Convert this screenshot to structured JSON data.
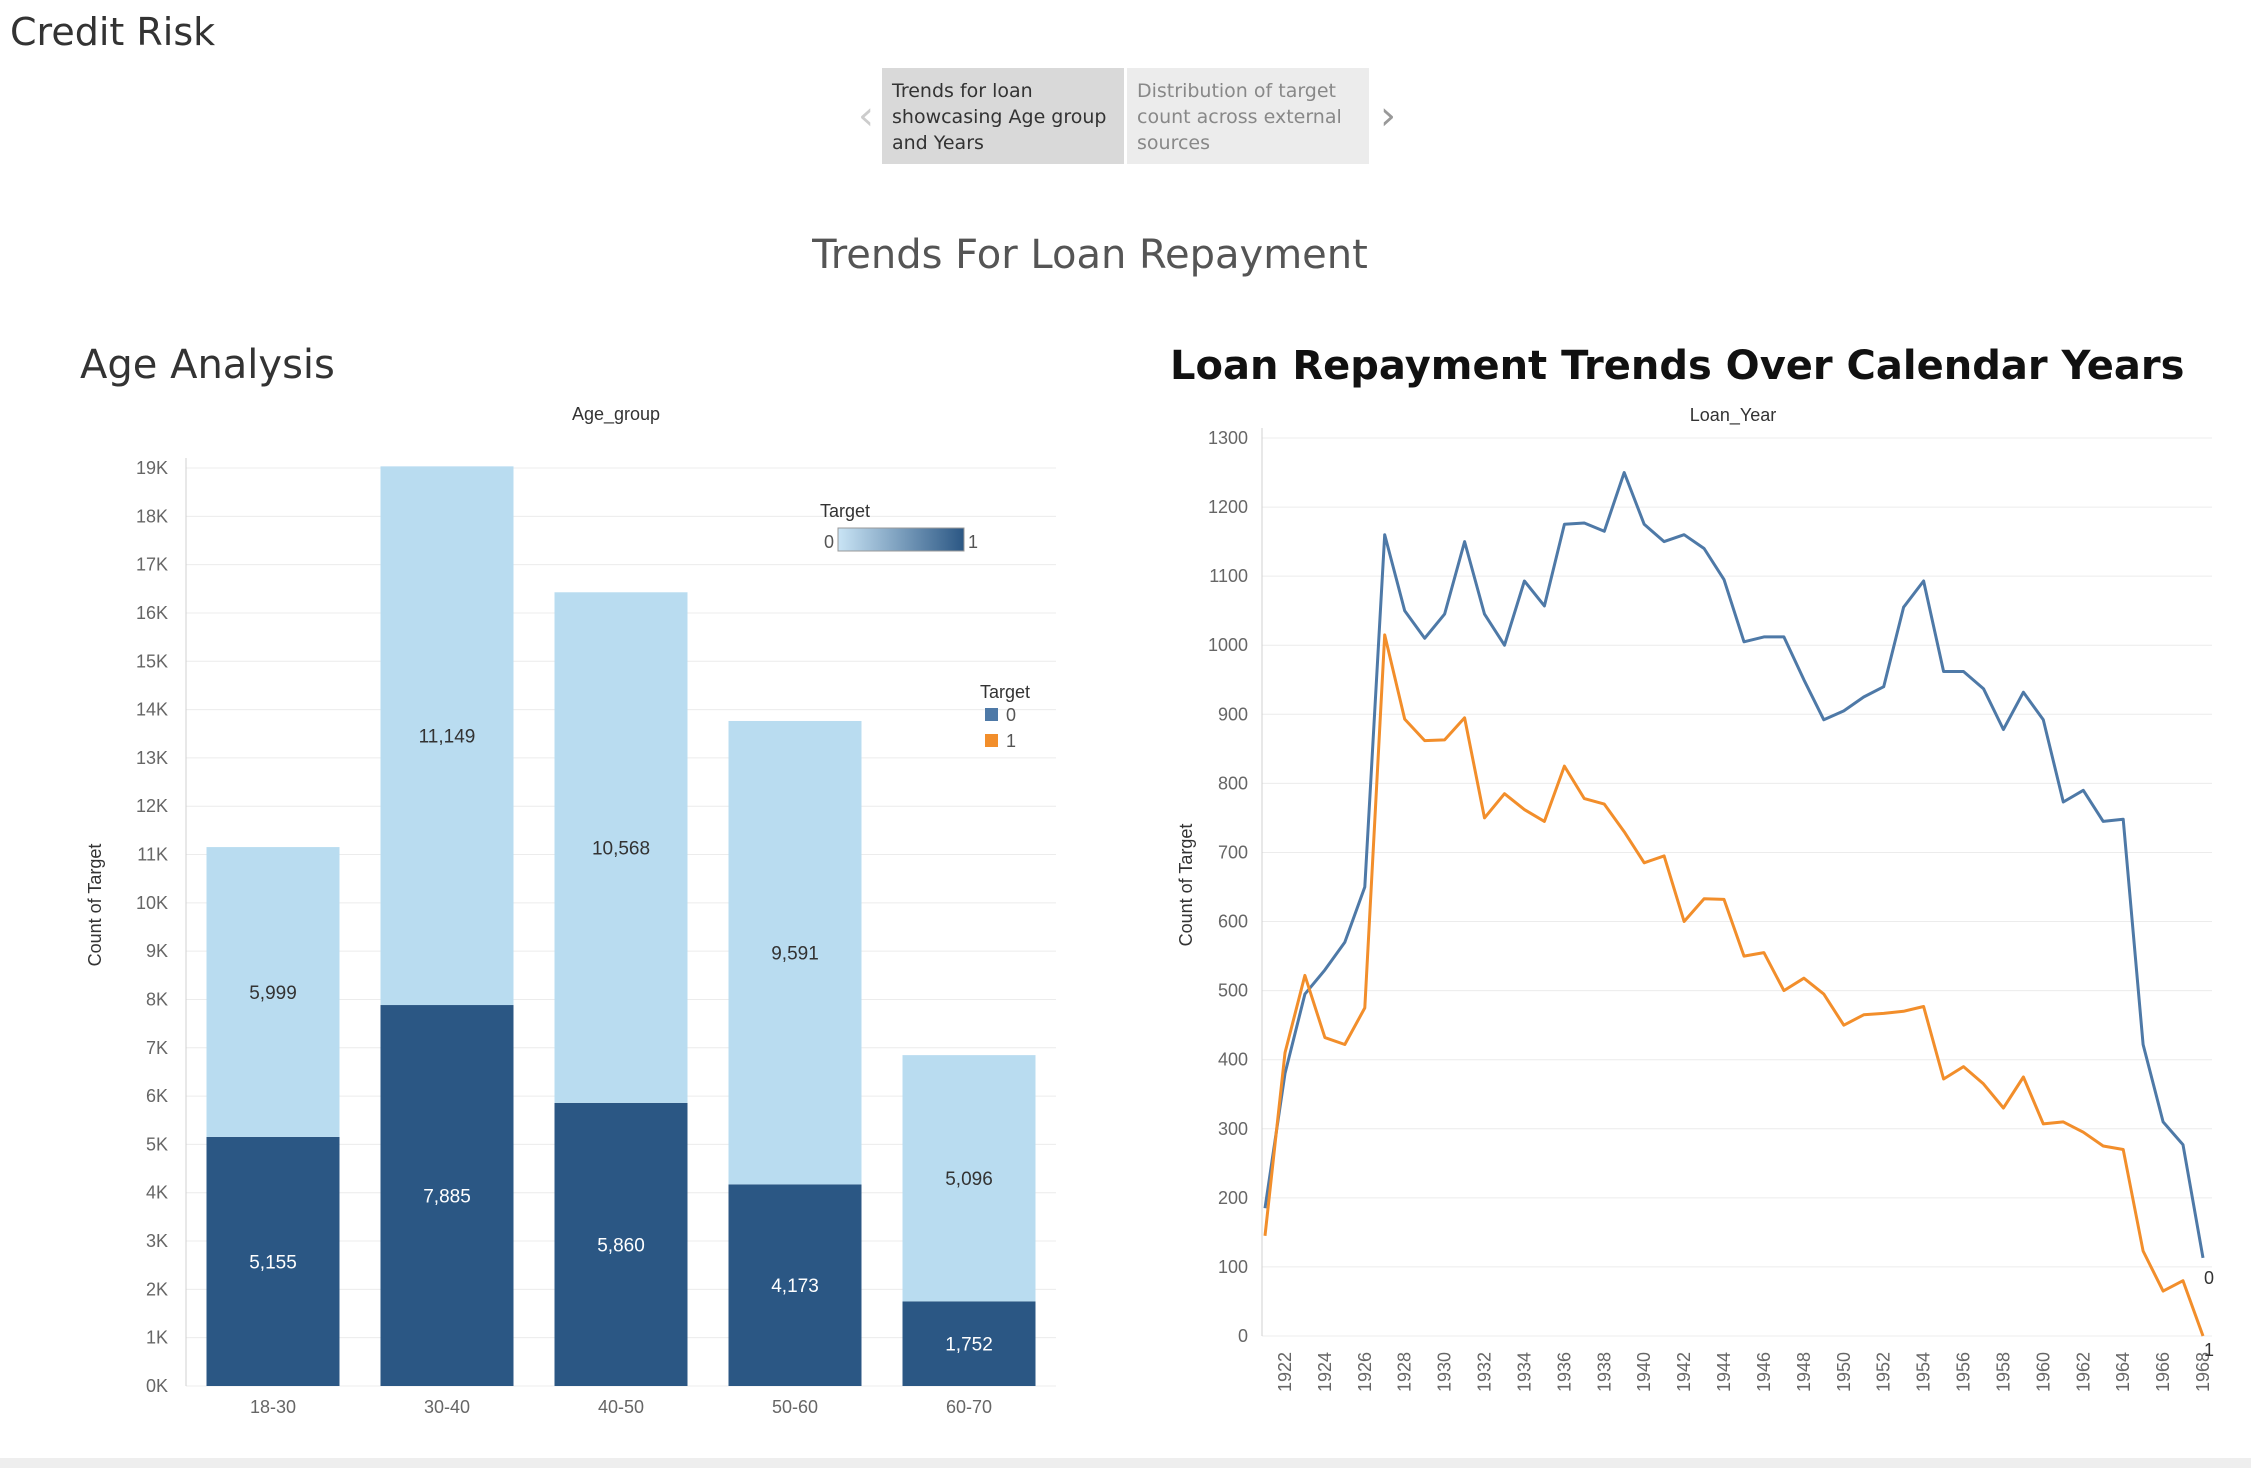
{
  "app": {
    "title": "Credit Risk"
  },
  "story": {
    "points": [
      {
        "label": "Trends for loan showcasing Age group and Years",
        "active": true
      },
      {
        "label": "Distribution of target count across external sources",
        "active": false
      }
    ],
    "prev_icon": "chevron-left-icon",
    "next_icon": "chevron-right-icon"
  },
  "dashboard": {
    "title": "Trends For Loan Repayment"
  },
  "charts": {
    "age": {
      "title": "Age Analysis"
    },
    "loan": {
      "title": "Loan Repayment Trends Over Calendar Years"
    }
  },
  "chart_data": [
    {
      "type": "bar",
      "stacked": true,
      "title": "Age Analysis",
      "xlabel": "Age_group",
      "ylabel": "Count of Target",
      "categories": [
        "18-30",
        "30-40",
        "40-50",
        "50-60",
        "60-70"
      ],
      "series": [
        {
          "name": "1",
          "values": [
            5155,
            7885,
            5860,
            4173,
            1752
          ]
        },
        {
          "name": "0",
          "values": [
            5999,
            11149,
            10568,
            9591,
            5096
          ]
        }
      ],
      "ylim": [
        0,
        19000
      ],
      "yticks": [
        "0K",
        "1K",
        "2K",
        "3K",
        "4K",
        "5K",
        "6K",
        "7K",
        "8K",
        "9K",
        "10K",
        "11K",
        "12K",
        "13K",
        "14K",
        "15K",
        "16K",
        "17K",
        "18K",
        "19K"
      ],
      "legend_color": {
        "title": "Target",
        "min": "0",
        "max": "1",
        "position": "top-right"
      },
      "legend_series": {
        "title": "Target",
        "items": [
          {
            "label": "0",
            "color": "#4e79a7"
          },
          {
            "label": "1",
            "color": "#f28e2b"
          }
        ],
        "position": "right"
      },
      "colors": {
        "light": "#b9dcf0",
        "dark": "#2b5784",
        "label_dark": "#333333",
        "label_light": "#ffffff"
      },
      "grid": true
    },
    {
      "type": "line",
      "title": "Loan Repayment Trends Over Calendar Years",
      "xlabel": "Loan_Year",
      "ylabel": "Count of Target",
      "x": [
        1921,
        1922,
        1923,
        1924,
        1925,
        1926,
        1927,
        1928,
        1929,
        1930,
        1931,
        1932,
        1933,
        1934,
        1935,
        1936,
        1937,
        1938,
        1939,
        1940,
        1941,
        1942,
        1943,
        1944,
        1945,
        1946,
        1947,
        1948,
        1949,
        1950,
        1951,
        1952,
        1953,
        1954,
        1955,
        1956,
        1957,
        1958,
        1959,
        1960,
        1961,
        1962,
        1963,
        1964,
        1965,
        1966,
        1967,
        1968
      ],
      "xticks": [
        "1922",
        "1924",
        "1926",
        "1928",
        "1930",
        "1932",
        "1934",
        "1936",
        "1938",
        "1940",
        "1942",
        "1944",
        "1946",
        "1948",
        "1950",
        "1952",
        "1954",
        "1956",
        "1958",
        "1960",
        "1962",
        "1964",
        "1966",
        "1968"
      ],
      "series": [
        {
          "name": "0",
          "color": "#4e79a7",
          "end_label": "0",
          "values": [
            185,
            380,
            495,
            530,
            570,
            650,
            1160,
            1050,
            1010,
            1045,
            1150,
            1045,
            1000,
            1093,
            1057,
            1175,
            1177,
            1165,
            1250,
            1175,
            1150,
            1160,
            1140,
            1095,
            1005,
            1012,
            1012,
            950,
            892,
            905,
            925,
            940,
            1055,
            1093,
            962,
            962,
            937,
            878,
            932,
            892,
            773,
            790,
            745,
            748,
            422,
            310,
            277,
            113
          ]
        },
        {
          "name": "1",
          "color": "#f28e2b",
          "end_label": "1",
          "values": [
            145,
            410,
            522,
            432,
            422,
            475,
            1015,
            893,
            862,
            863,
            895,
            750,
            785,
            762,
            745,
            825,
            778,
            770,
            730,
            685,
            695,
            600,
            633,
            632,
            550,
            555,
            500,
            518,
            495,
            450,
            465,
            467,
            470,
            477,
            372,
            390,
            365,
            330,
            375,
            307,
            310,
            295,
            275,
            270,
            123,
            65,
            80,
            0
          ]
        }
      ],
      "ylim": [
        0,
        1300
      ],
      "yticks": [
        0,
        100,
        200,
        300,
        400,
        500,
        600,
        700,
        800,
        900,
        1000,
        1100,
        1200,
        1300
      ],
      "grid": true
    }
  ]
}
